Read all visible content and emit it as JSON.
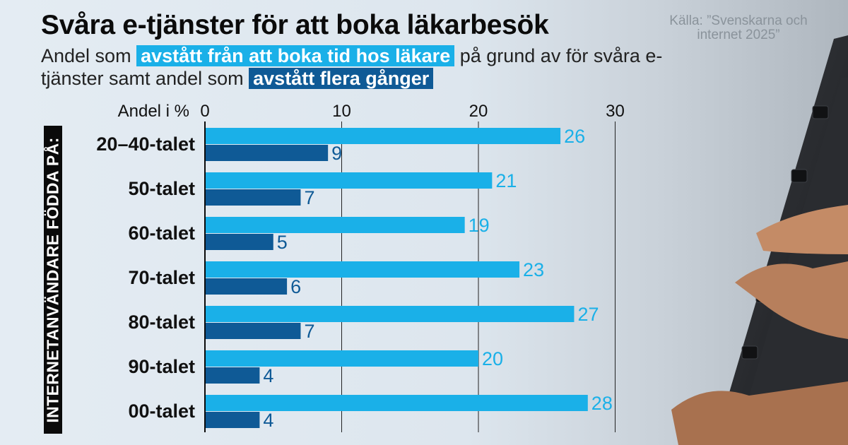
{
  "header": {
    "title": "Svåra e-tjänster för att boka läkarbesök",
    "subtitle_part1": "Andel som ",
    "subtitle_highlight1": "avstått från att boka tid hos läkare",
    "subtitle_part2": " på grund av för svåra e-tjänster samt andel som ",
    "subtitle_highlight2": "avstått flera gånger",
    "source": "Källa: ”Svenskarna och internet 2025”"
  },
  "chart_data": {
    "type": "bar",
    "orientation": "horizontal",
    "xlabel": "Andel i %",
    "ylabel": "INTERNETANVÄNDARE FÖDDA PÅ:",
    "categories": [
      "20–40-talet",
      "50-talet",
      "60-talet",
      "70-talet",
      "80-talet",
      "90-talet",
      "00-talet"
    ],
    "series": [
      {
        "name": "avstått från att boka tid hos läkare",
        "color": "#1ab0e8",
        "values": [
          26,
          21,
          19,
          23,
          27,
          20,
          28
        ]
      },
      {
        "name": "avstått flera gånger",
        "color": "#0f5a96",
        "values": [
          9,
          7,
          5,
          6,
          7,
          4,
          4
        ]
      }
    ],
    "xticks": [
      0,
      10,
      20,
      30
    ],
    "xlim": [
      0,
      30
    ],
    "grid": true
  }
}
